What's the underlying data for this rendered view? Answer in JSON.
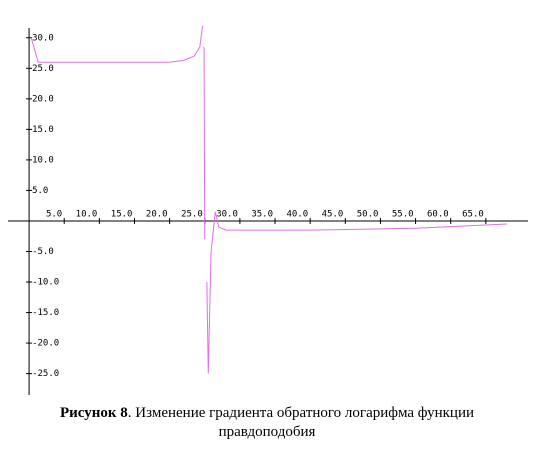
{
  "chart_data": {
    "type": "line",
    "x": [
      0.3,
      1.3,
      10,
      20,
      22,
      23.5,
      24.3,
      24.7,
      null,
      24.9,
      25.0,
      null,
      25.3,
      25.5,
      25.9,
      26.5,
      27,
      28,
      40,
      55,
      68
    ],
    "series": [
      {
        "color": "#e070e8",
        "values": [
          30,
          26,
          26,
          26,
          26.3,
          27,
          28.5,
          32,
          null,
          28.5,
          -3,
          null,
          -10,
          -25,
          -5,
          1.5,
          -1,
          -1.5,
          -1.5,
          -1.2,
          -0.5
        ]
      }
    ],
    "xlim": [
      -3,
      71
    ],
    "ylim": [
      -28.5,
      31.6
    ],
    "xticks": [
      {
        "value": 5,
        "label": "5.0"
      },
      {
        "value": 10,
        "label": "10.0"
      },
      {
        "value": 15,
        "label": "15.0"
      },
      {
        "value": 20,
        "label": "20.0"
      },
      {
        "value": 25,
        "label": "25.0"
      },
      {
        "value": 30,
        "label": "30.0"
      },
      {
        "value": 35,
        "label": "35.0"
      },
      {
        "value": 40,
        "label": "40.0"
      },
      {
        "value": 45,
        "label": "45.0"
      },
      {
        "value": 50,
        "label": "50.0"
      },
      {
        "value": 55,
        "label": "55.0"
      },
      {
        "value": 60,
        "label": "60.0"
      },
      {
        "value": 65,
        "label": "65.0"
      }
    ],
    "yticks": [
      {
        "value": 30,
        "label": "30.0"
      },
      {
        "value": 25,
        "label": "25.0"
      },
      {
        "value": 20,
        "label": "20.0"
      },
      {
        "value": 15,
        "label": "15.0"
      },
      {
        "value": 10,
        "label": "10.0"
      },
      {
        "value": 5,
        "label": "5.0"
      },
      {
        "value": -5,
        "label": "-5.0"
      },
      {
        "value": -10,
        "label": "-10.0"
      },
      {
        "value": -15,
        "label": "-15.0"
      },
      {
        "value": -20,
        "label": "-20.0"
      },
      {
        "value": -25,
        "label": "-25.0"
      }
    ],
    "caption_label": "Рисунок 8",
    "caption_text": ". Изменение градиента обратного логарифма функции правдоподобия"
  }
}
